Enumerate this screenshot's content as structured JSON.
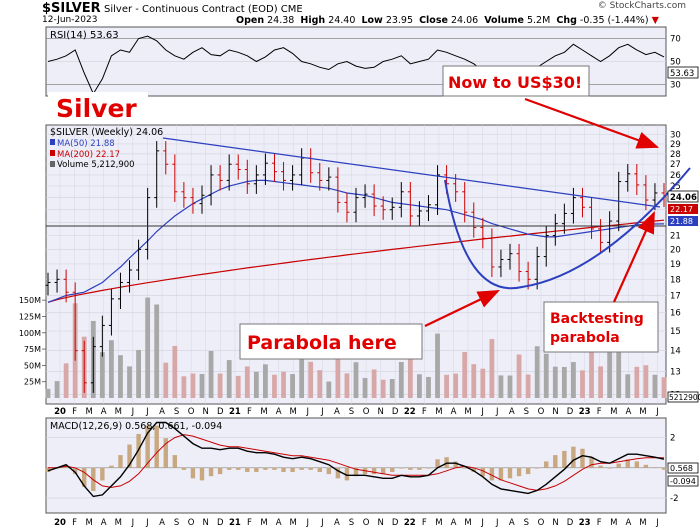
{
  "header": {
    "symbol": "$SILVER",
    "name": "Silver - Continuous Contract (EOD)",
    "exchange": "CME",
    "date": "12-Jun-2023",
    "open_label": "Open",
    "open": "24.38",
    "high_label": "High",
    "high": "24.40",
    "low_label": "Low",
    "low": "23.95",
    "close_label": "Close",
    "close": "24.06",
    "volume_label": "Volume",
    "volume": "5.2M",
    "chg_label": "Chg",
    "chg": "-0.35 (-1.44%)",
    "logo": "© StockCharts.com"
  },
  "colors": {
    "plot_bg": "#eeeef8",
    "up": "#000000",
    "down": "#cc0000",
    "ma50": "#2c3fbf",
    "ma200": "#c80000",
    "annotation": "#e00000",
    "grid": "#d6d6e4"
  },
  "chart_data": [
    {
      "type": "line",
      "name": "rsi-panel",
      "legend": "RSI(14) 53.63",
      "last_label": "53.63",
      "ylim": [
        20,
        80
      ],
      "yticks": [
        30,
        50,
        70
      ],
      "thresholds": [
        30,
        70
      ],
      "rsi": [
        50,
        52,
        55,
        60,
        40,
        22,
        35,
        55,
        60,
        58,
        70,
        72,
        68,
        60,
        55,
        52,
        58,
        62,
        56,
        55,
        60,
        58,
        55,
        50,
        54,
        60,
        62,
        57,
        50,
        48,
        45,
        43,
        48,
        50,
        46,
        44,
        45,
        50,
        52,
        55,
        48,
        50,
        52,
        60,
        58,
        55,
        52,
        48,
        42,
        35,
        40,
        45,
        42,
        40,
        45,
        50,
        55,
        58,
        65,
        60,
        55,
        50,
        55,
        62,
        65,
        60,
        56,
        58,
        54
      ]
    },
    {
      "type": "candlestick",
      "name": "price-panel",
      "title": "Silver",
      "legend_main": "$SILVER (Weekly) 24.06",
      "legend_ma50": "MA(50) 21.88",
      "legend_ma200": "MA(200) 22.17",
      "legend_volume": "Volume 5,212,900",
      "last_price_label": "24.06",
      "ma50_label": "21.88",
      "ma200_label": "22.17",
      "volume_last_label": "5212900",
      "ylim": [
        11.6,
        31
      ],
      "log_scale": true,
      "yticks": [
        12,
        13,
        14,
        15,
        16,
        17,
        18,
        19,
        20,
        21,
        22,
        23,
        24,
        25,
        26,
        27,
        28,
        29,
        30
      ],
      "volume_axis": [
        "150M",
        "125M",
        "100M",
        "75M",
        "50M",
        "25M"
      ],
      "volume_max_m": 230,
      "x_labels": [
        "20",
        "F",
        "M",
        "A",
        "M",
        "J",
        "J",
        "A",
        "S",
        "O",
        "N",
        "D",
        "21",
        "F",
        "M",
        "A",
        "M",
        "J",
        "J",
        "A",
        "S",
        "O",
        "N",
        "D",
        "22",
        "F",
        "M",
        "A",
        "M",
        "J",
        "J",
        "A",
        "S",
        "O",
        "N",
        "D",
        "23",
        "F",
        "M",
        "A",
        "M",
        "J"
      ],
      "close": [
        17.8,
        18.0,
        17.2,
        14.0,
        12.5,
        14.2,
        15.3,
        16.8,
        17.8,
        18.6,
        20.0,
        24.0,
        28.3,
        27.0,
        24.5,
        24.0,
        23.5,
        24.2,
        26.0,
        25.5,
        27.0,
        26.5,
        25.2,
        26.0,
        27.1,
        26.3,
        25.5,
        26.0,
        27.6,
        26.2,
        25.5,
        25.8,
        23.6,
        22.8,
        24.0,
        24.3,
        23.3,
        23.0,
        23.2,
        24.5,
        22.5,
        22.9,
        23.4,
        26.0,
        25.2,
        24.5,
        22.8,
        21.6,
        20.8,
        18.8,
        19.3,
        19.7,
        18.5,
        18.0,
        19.5,
        21.0,
        21.9,
        22.7,
        24.0,
        23.2,
        21.5,
        20.5,
        22.1,
        25.4,
        26.1,
        25.1,
        23.8,
        24.4,
        24.06
      ],
      "ma50": [
        16.6,
        16.8,
        17.0,
        17.1,
        17.2,
        17.5,
        17.8,
        18.3,
        18.8,
        19.4,
        20.0,
        20.6,
        21.3,
        21.9,
        22.5,
        23.0,
        23.5,
        23.9,
        24.3,
        24.7,
        25.0,
        25.2,
        25.4,
        25.5,
        25.5,
        25.4,
        25.3,
        25.2,
        25.1,
        25.0,
        24.9,
        24.8,
        24.6,
        24.4,
        24.3,
        24.2,
        24.0,
        23.8,
        23.6,
        23.5,
        23.4,
        23.3,
        23.2,
        23.1,
        23.0,
        22.8,
        22.6,
        22.4,
        22.2,
        21.9,
        21.7,
        21.5,
        21.3,
        21.1,
        21.0,
        20.9,
        20.9,
        21.0,
        21.1,
        21.2,
        21.3,
        21.4,
        21.5,
        21.6,
        21.7,
        21.8,
        21.85,
        21.87,
        21.88
      ]
    },
    {
      "type": "line",
      "name": "macd-panel",
      "legend": "MACD(12,26,9) 0.568, 0.661, -0.094",
      "last_labels": [
        "0.568",
        "-0.094"
      ],
      "ylim": [
        -3,
        3.3
      ],
      "macd": [
        -0.2,
        0,
        0.2,
        -0.3,
        -1.2,
        -1.9,
        -1.8,
        -1.2,
        -0.6,
        0.2,
        1.2,
        2.3,
        3.0,
        3.0,
        2.6,
        2.1,
        1.6,
        1.3,
        1.3,
        1.2,
        1.3,
        1.3,
        1.1,
        1.0,
        1.0,
        0.9,
        0.7,
        0.6,
        0.7,
        0.6,
        0.4,
        0.2,
        -0.2,
        -0.5,
        -0.5,
        -0.5,
        -0.6,
        -0.7,
        -0.7,
        -0.5,
        -0.6,
        -0.6,
        -0.5,
        0,
        0.3,
        0.3,
        0.1,
        -0.2,
        -0.6,
        -1.1,
        -1.4,
        -1.5,
        -1.6,
        -1.7,
        -1.5,
        -1.1,
        -0.6,
        -0.1,
        0.5,
        0.8,
        0.7,
        0.4,
        0.3,
        0.6,
        0.9,
        0.9,
        0.8,
        0.7,
        0.568
      ],
      "signal": [
        0,
        0,
        0.1,
        0,
        -0.3,
        -0.8,
        -1.2,
        -1.3,
        -1.2,
        -0.9,
        -0.4,
        0.3,
        1.0,
        1.6,
        2.0,
        2.2,
        2.1,
        1.9,
        1.7,
        1.5,
        1.4,
        1.4,
        1.3,
        1.2,
        1.1,
        1.0,
        0.9,
        0.8,
        0.8,
        0.7,
        0.6,
        0.5,
        0.3,
        0.1,
        -0.1,
        -0.2,
        -0.3,
        -0.4,
        -0.5,
        -0.5,
        -0.5,
        -0.5,
        -0.5,
        -0.4,
        -0.2,
        0,
        0.1,
        0,
        -0.2,
        -0.5,
        -0.8,
        -1.0,
        -1.2,
        -1.4,
        -1.5,
        -1.4,
        -1.2,
        -0.9,
        -0.5,
        -0.1,
        0.2,
        0.3,
        0.3,
        0.4,
        0.5,
        0.6,
        0.66,
        0.67,
        0.661
      ]
    }
  ],
  "annotations": {
    "target": "Now to US$30!",
    "parabola": "Parabola here",
    "backtest_line1": "Backtesting",
    "backtest_line2": "parabola"
  }
}
